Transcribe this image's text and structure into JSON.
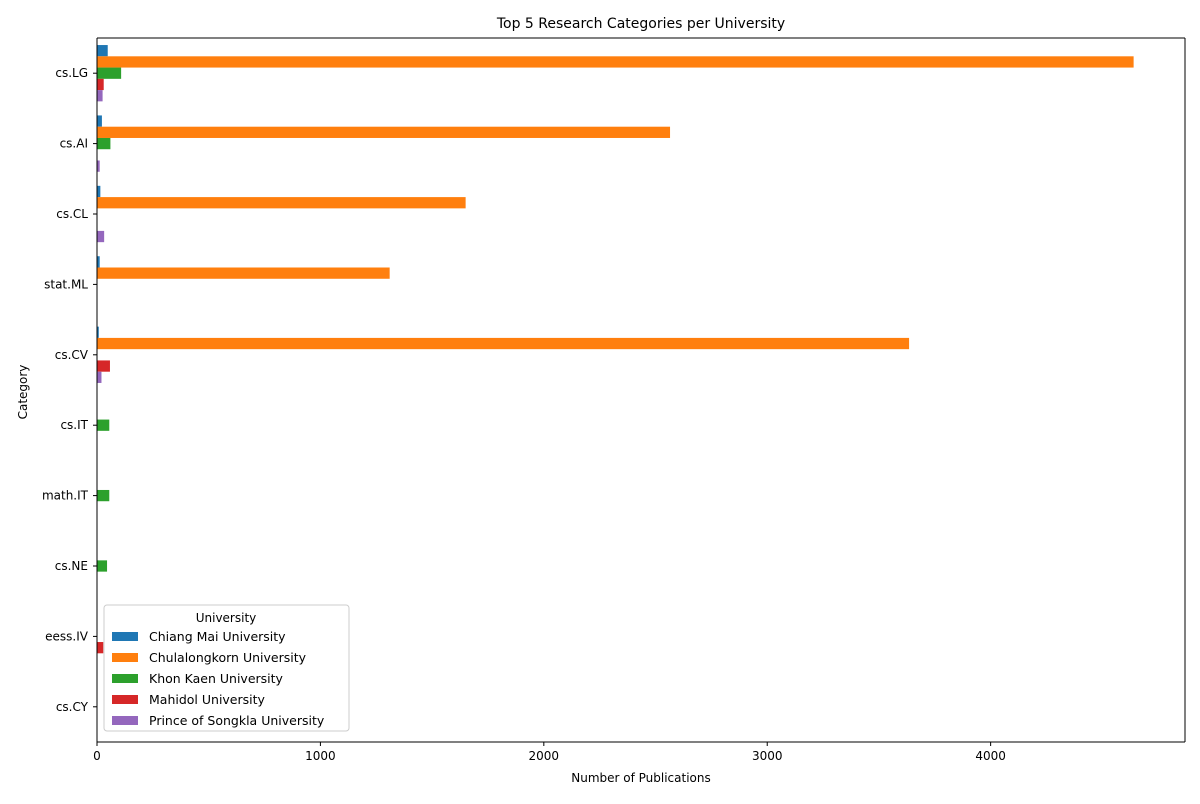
{
  "chart_data": {
    "type": "bar",
    "orientation": "horizontal",
    "title": "Top 5 Research Categories per University",
    "xlabel": "Number of Publications",
    "ylabel": "Category",
    "xlim": [
      0,
      4870
    ],
    "xticks": [
      0,
      1000,
      2000,
      3000,
      4000
    ],
    "grid": false,
    "legend_title": "University",
    "legend_position": "lower-left",
    "categories": [
      "cs.LG",
      "cs.AI",
      "cs.CL",
      "stat.ML",
      "cs.CV",
      "cs.IT",
      "math.IT",
      "cs.NE",
      "eess.IV",
      "cs.CY"
    ],
    "series": [
      {
        "name": "Chiang Mai University",
        "color": "#1f77b4",
        "values": [
          48,
          22,
          15,
          12,
          8,
          0,
          0,
          0,
          0,
          0
        ]
      },
      {
        "name": "Chulalongkorn University",
        "color": "#ff7f0e",
        "values": [
          4640,
          2565,
          1650,
          1310,
          3635,
          0,
          0,
          0,
          0,
          0
        ]
      },
      {
        "name": "Khon Kaen University",
        "color": "#2ca02c",
        "values": [
          108,
          60,
          0,
          0,
          0,
          55,
          55,
          45,
          0,
          0
        ]
      },
      {
        "name": "Mahidol University",
        "color": "#d62728",
        "values": [
          30,
          0,
          0,
          0,
          58,
          0,
          0,
          0,
          28,
          0
        ]
      },
      {
        "name": "Prince of Songkla University",
        "color": "#9467bd",
        "values": [
          25,
          12,
          32,
          0,
          20,
          0,
          0,
          0,
          0,
          0
        ]
      }
    ]
  }
}
